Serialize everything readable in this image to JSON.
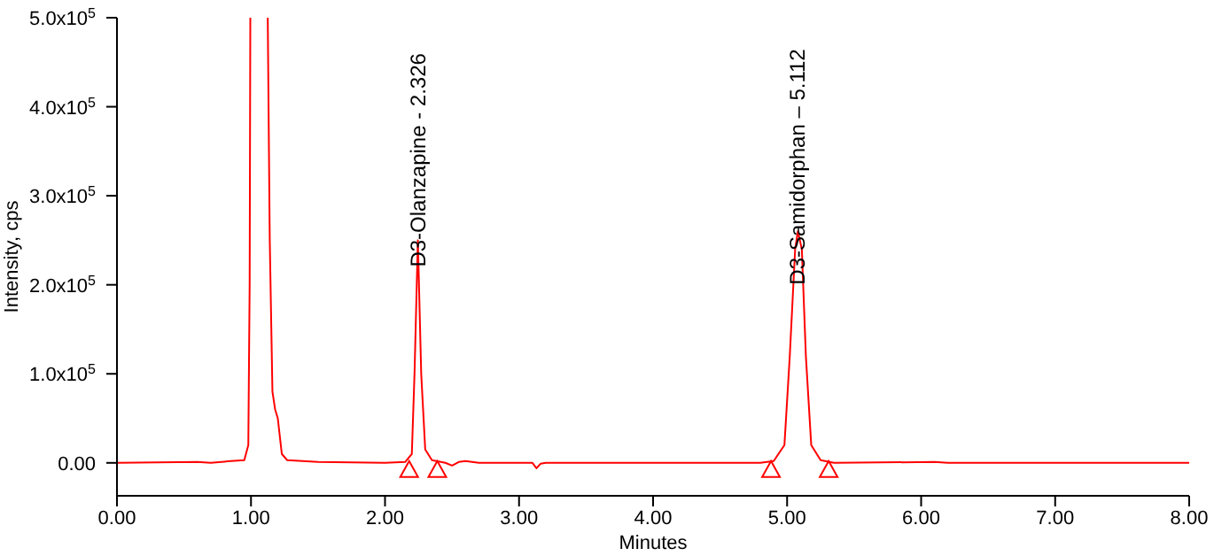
{
  "chart_data": {
    "type": "line",
    "xlabel": "Minutes",
    "ylabel": "Intensity, cps",
    "xlim": [
      0,
      8
    ],
    "xticks": [
      {
        "value": 0,
        "label": "0.00"
      },
      {
        "value": 1,
        "label": "1.00"
      },
      {
        "value": 2,
        "label": "2.00"
      },
      {
        "value": 3,
        "label": "3.00"
      },
      {
        "value": 4,
        "label": "4.00"
      },
      {
        "value": 5,
        "label": "5.00"
      },
      {
        "value": 6,
        "label": "6.00"
      },
      {
        "value": 7,
        "label": "7.00"
      },
      {
        "value": 8,
        "label": "8.00"
      }
    ],
    "ylim": [
      -37000,
      500000
    ],
    "yticks": [
      {
        "value": 0,
        "label": "0.00"
      },
      {
        "value": 100000,
        "label": "1.0x10$^{5}$"
      },
      {
        "value": 200000,
        "label": "2.0x10$^{5}$"
      },
      {
        "value": 300000,
        "label": "3.0x10$^{5}$"
      },
      {
        "value": 400000,
        "label": "4.0x10$^{5}$"
      },
      {
        "value": 500000,
        "label": "5.0x10$^{5}$"
      }
    ],
    "series": [
      {
        "color": "#ff0000",
        "marker": "none",
        "line_style": "solid",
        "x": [
          0,
          0.6,
          0.7,
          0.85,
          0.95,
          0.98,
          0.99,
          0.995,
          1.06,
          1.125,
          1.14,
          1.16,
          1.18,
          1.2,
          1.23,
          1.27,
          1.5,
          2.0,
          2.15,
          2.2,
          2.22,
          2.245,
          2.27,
          2.3,
          2.35,
          2.45,
          2.5,
          2.55,
          2.6,
          2.7,
          3.1,
          3.13,
          3.16,
          3.2,
          4.8,
          4.9,
          4.98,
          5.02,
          5.06,
          5.08,
          5.11,
          5.14,
          5.18,
          5.25,
          5.35,
          6.1,
          6.2,
          8.0
        ],
        "values": [
          0,
          1000,
          0,
          2000,
          3000,
          20000,
          200000,
          500000,
          null,
          500000,
          250000,
          80000,
          60000,
          50000,
          10000,
          3000,
          1000,
          0,
          1000,
          10000,
          100000,
          250000,
          100000,
          15000,
          3000,
          0,
          -3000,
          1000,
          2000,
          0,
          0,
          -6000,
          -1000,
          0,
          0,
          2000,
          20000,
          120000,
          240000,
          260000,
          240000,
          120000,
          20000,
          3000,
          0,
          1000,
          0,
          0
        ]
      },
      {
        "type": "scatter",
        "color": "#ff0000",
        "marker": "triangle",
        "x": [
          2.18,
          2.39,
          4.88,
          5.31
        ],
        "values": [
          -8000,
          -8000,
          -8000,
          -8000
        ]
      }
    ],
    "annotations": [
      {
        "text": "D3-Olanzapine - 2.326",
        "x": 2.245,
        "y": 220000
      },
      {
        "text": "D3-Samidorphan – 5.112",
        "x": 5.08,
        "y": 200000
      }
    ]
  }
}
